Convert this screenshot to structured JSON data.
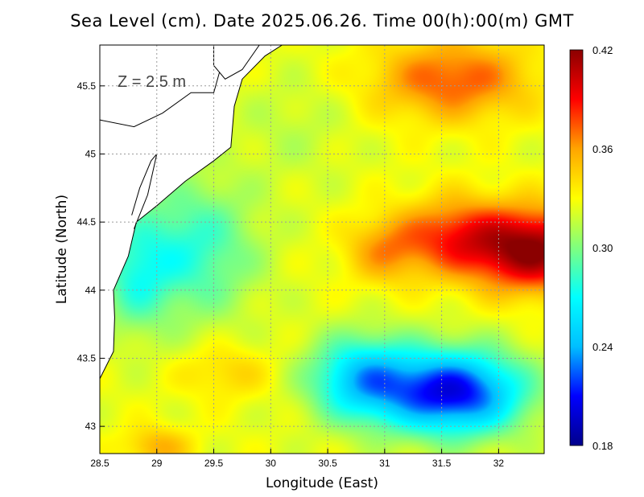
{
  "title": "Sea Level (cm). Date 2025.06.26. Time 00(h):00(m) GMT",
  "depth_label": "Z = 2.5 m",
  "colors": {
    "scale": [
      "#00008b",
      "#0000ff",
      "#00bfff",
      "#00ffff",
      "#7fff7f",
      "#ffff00",
      "#ffa500",
      "#ff0000",
      "#8b0000"
    ],
    "coast": "#000000",
    "grid": "#9a9a9a"
  },
  "chart_data": {
    "type": "heatmap",
    "variable": "Sea Level (cm)",
    "xlabel": "Longitude (East)",
    "ylabel": "Latitude (North)",
    "xlim": [
      28.5,
      32.4
    ],
    "ylim": [
      42.8,
      45.8
    ],
    "xticks": [
      28.5,
      29,
      29.5,
      30,
      30.5,
      31,
      31.5,
      32
    ],
    "xtick_labels": [
      "28.5",
      "29",
      "29.5",
      "30",
      "30.5",
      "31",
      "31.5",
      "32"
    ],
    "yticks": [
      43,
      43.5,
      44,
      44.5,
      45,
      45.5
    ],
    "ytick_labels": [
      "43",
      "43.5",
      "44",
      "44.5",
      "45",
      "45.5"
    ],
    "colorbar": {
      "min": 0.18,
      "max": 0.42,
      "ticks": [
        0.18,
        0.24,
        0.3,
        0.36,
        0.42
      ],
      "tick_labels": [
        "0.18",
        "0.24",
        "0.30",
        "0.36",
        "0.42"
      ]
    },
    "field": {
      "base": 0.325,
      "features": [
        {
          "lon": 32.3,
          "lat": 44.3,
          "amp": 0.095,
          "sx": 0.55,
          "sy": 0.3
        },
        {
          "lon": 31.6,
          "lat": 44.4,
          "amp": 0.05,
          "sx": 0.45,
          "sy": 0.28
        },
        {
          "lon": 31.0,
          "lat": 44.3,
          "amp": 0.035,
          "sx": 0.35,
          "sy": 0.25
        },
        {
          "lon": 31.6,
          "lat": 45.55,
          "amp": 0.05,
          "sx": 0.7,
          "sy": 0.3
        },
        {
          "lon": 31.6,
          "lat": 43.25,
          "amp": -0.12,
          "sx": 0.6,
          "sy": 0.3
        },
        {
          "lon": 30.8,
          "lat": 43.35,
          "amp": -0.075,
          "sx": 0.45,
          "sy": 0.3
        },
        {
          "lon": 29.3,
          "lat": 44.3,
          "amp": -0.045,
          "sx": 0.55,
          "sy": 0.5
        },
        {
          "lon": 28.8,
          "lat": 44.1,
          "amp": -0.035,
          "sx": 0.3,
          "sy": 0.4
        },
        {
          "lon": 29.6,
          "lat": 43.4,
          "amp": 0.02,
          "sx": 0.4,
          "sy": 0.2
        },
        {
          "lon": 29.0,
          "lat": 42.85,
          "amp": 0.03,
          "sx": 0.3,
          "sy": 0.15
        },
        {
          "lon": 30.2,
          "lat": 45.2,
          "amp": -0.01,
          "sx": 0.5,
          "sy": 0.4
        }
      ]
    },
    "coastline_east": [
      [
        28.5,
        43.35
      ],
      [
        28.62,
        43.55
      ],
      [
        28.63,
        43.8
      ],
      [
        28.62,
        44.0
      ],
      [
        28.75,
        44.25
      ],
      [
        28.82,
        44.5
      ],
      [
        29.0,
        44.62
      ],
      [
        29.25,
        44.8
      ],
      [
        29.5,
        44.95
      ],
      [
        29.65,
        45.05
      ],
      [
        29.68,
        45.35
      ],
      [
        29.75,
        45.55
      ],
      [
        29.95,
        45.72
      ],
      [
        30.1,
        45.8
      ]
    ],
    "coastline_inland": [
      {
        "name": "liman-south",
        "points": [
          [
            28.78,
            44.55
          ],
          [
            28.85,
            44.75
          ],
          [
            28.95,
            44.95
          ],
          [
            29.0,
            45.0
          ],
          [
            28.92,
            44.7
          ],
          [
            28.8,
            44.45
          ]
        ]
      },
      {
        "name": "liman-north",
        "points": [
          [
            28.5,
            45.25
          ],
          [
            28.8,
            45.2
          ],
          [
            29.05,
            45.3
          ],
          [
            29.3,
            45.45
          ],
          [
            29.5,
            45.45
          ],
          [
            29.55,
            45.6
          ]
        ]
      },
      {
        "name": "river-delta",
        "points": [
          [
            29.5,
            45.8
          ],
          [
            29.5,
            45.65
          ],
          [
            29.6,
            45.55
          ],
          [
            29.75,
            45.62
          ],
          [
            29.9,
            45.8
          ]
        ]
      }
    ]
  }
}
